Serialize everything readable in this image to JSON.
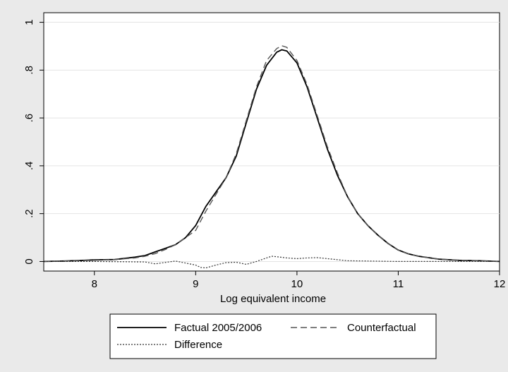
{
  "chart_data": {
    "type": "line",
    "title": "",
    "xlabel": "Log equivalent income",
    "ylabel": "",
    "xlim": [
      7.5,
      12
    ],
    "ylim": [
      -0.04,
      1.04
    ],
    "x_ticks": [
      8,
      9,
      10,
      11,
      12
    ],
    "x_tick_labels": [
      "8",
      "9",
      "10",
      "11",
      "12"
    ],
    "y_ticks": [
      0,
      0.2,
      0.4,
      0.6,
      0.8,
      1
    ],
    "y_tick_labels": [
      "0",
      ".2",
      ".4",
      ".6",
      ".8",
      "1"
    ],
    "grid": "horizontal",
    "legend_position": "bottom",
    "series": [
      {
        "name": "Factual 2005/2006",
        "style": "solid",
        "color": "#000000",
        "x": [
          7.5,
          7.7,
          7.9,
          8.0,
          8.2,
          8.4,
          8.5,
          8.6,
          8.7,
          8.8,
          8.9,
          9.0,
          9.1,
          9.2,
          9.3,
          9.4,
          9.5,
          9.6,
          9.7,
          9.8,
          9.85,
          9.9,
          10.0,
          10.1,
          10.2,
          10.3,
          10.4,
          10.5,
          10.6,
          10.7,
          10.8,
          10.9,
          11.0,
          11.1,
          11.2,
          11.4,
          11.6,
          11.8,
          12.0
        ],
        "y": [
          0.0,
          0.002,
          0.005,
          0.007,
          0.008,
          0.018,
          0.025,
          0.04,
          0.055,
          0.07,
          0.1,
          0.15,
          0.23,
          0.29,
          0.35,
          0.44,
          0.58,
          0.72,
          0.82,
          0.875,
          0.885,
          0.88,
          0.83,
          0.73,
          0.6,
          0.47,
          0.36,
          0.27,
          0.2,
          0.15,
          0.11,
          0.075,
          0.048,
          0.032,
          0.022,
          0.01,
          0.005,
          0.003,
          0.0
        ]
      },
      {
        "name": "Counterfactual",
        "style": "dashed",
        "color": "#555555",
        "x": [
          7.5,
          7.7,
          7.9,
          8.0,
          8.2,
          8.4,
          8.5,
          8.6,
          8.7,
          8.8,
          8.9,
          9.0,
          9.1,
          9.2,
          9.3,
          9.4,
          9.5,
          9.6,
          9.7,
          9.8,
          9.85,
          9.9,
          10.0,
          10.1,
          10.2,
          10.3,
          10.4,
          10.5,
          10.6,
          10.7,
          10.8,
          10.9,
          11.0,
          11.1,
          11.2,
          11.4,
          11.6,
          11.8,
          12.0
        ],
        "y": [
          0.0,
          0.002,
          0.004,
          0.005,
          0.008,
          0.015,
          0.022,
          0.033,
          0.05,
          0.07,
          0.1,
          0.13,
          0.21,
          0.28,
          0.35,
          0.45,
          0.59,
          0.73,
          0.84,
          0.89,
          0.902,
          0.895,
          0.84,
          0.74,
          0.61,
          0.48,
          0.37,
          0.27,
          0.2,
          0.15,
          0.11,
          0.075,
          0.048,
          0.032,
          0.022,
          0.01,
          0.005,
          0.003,
          0.0
        ]
      },
      {
        "name": "Difference",
        "style": "dotted",
        "color": "#333333",
        "x": [
          7.5,
          8.0,
          8.5,
          8.6,
          8.8,
          9.0,
          9.05,
          9.1,
          9.2,
          9.3,
          9.4,
          9.5,
          9.6,
          9.7,
          9.75,
          9.8,
          9.9,
          10.0,
          10.1,
          10.2,
          10.3,
          10.5,
          11.0,
          12.0
        ],
        "y": [
          0.0,
          0.0,
          -0.002,
          -0.01,
          0.002,
          -0.015,
          -0.025,
          -0.027,
          -0.015,
          -0.005,
          -0.003,
          -0.012,
          0.0,
          0.015,
          0.022,
          0.02,
          0.015,
          0.012,
          0.015,
          0.016,
          0.012,
          0.003,
          0.0,
          0.0
        ]
      }
    ]
  }
}
